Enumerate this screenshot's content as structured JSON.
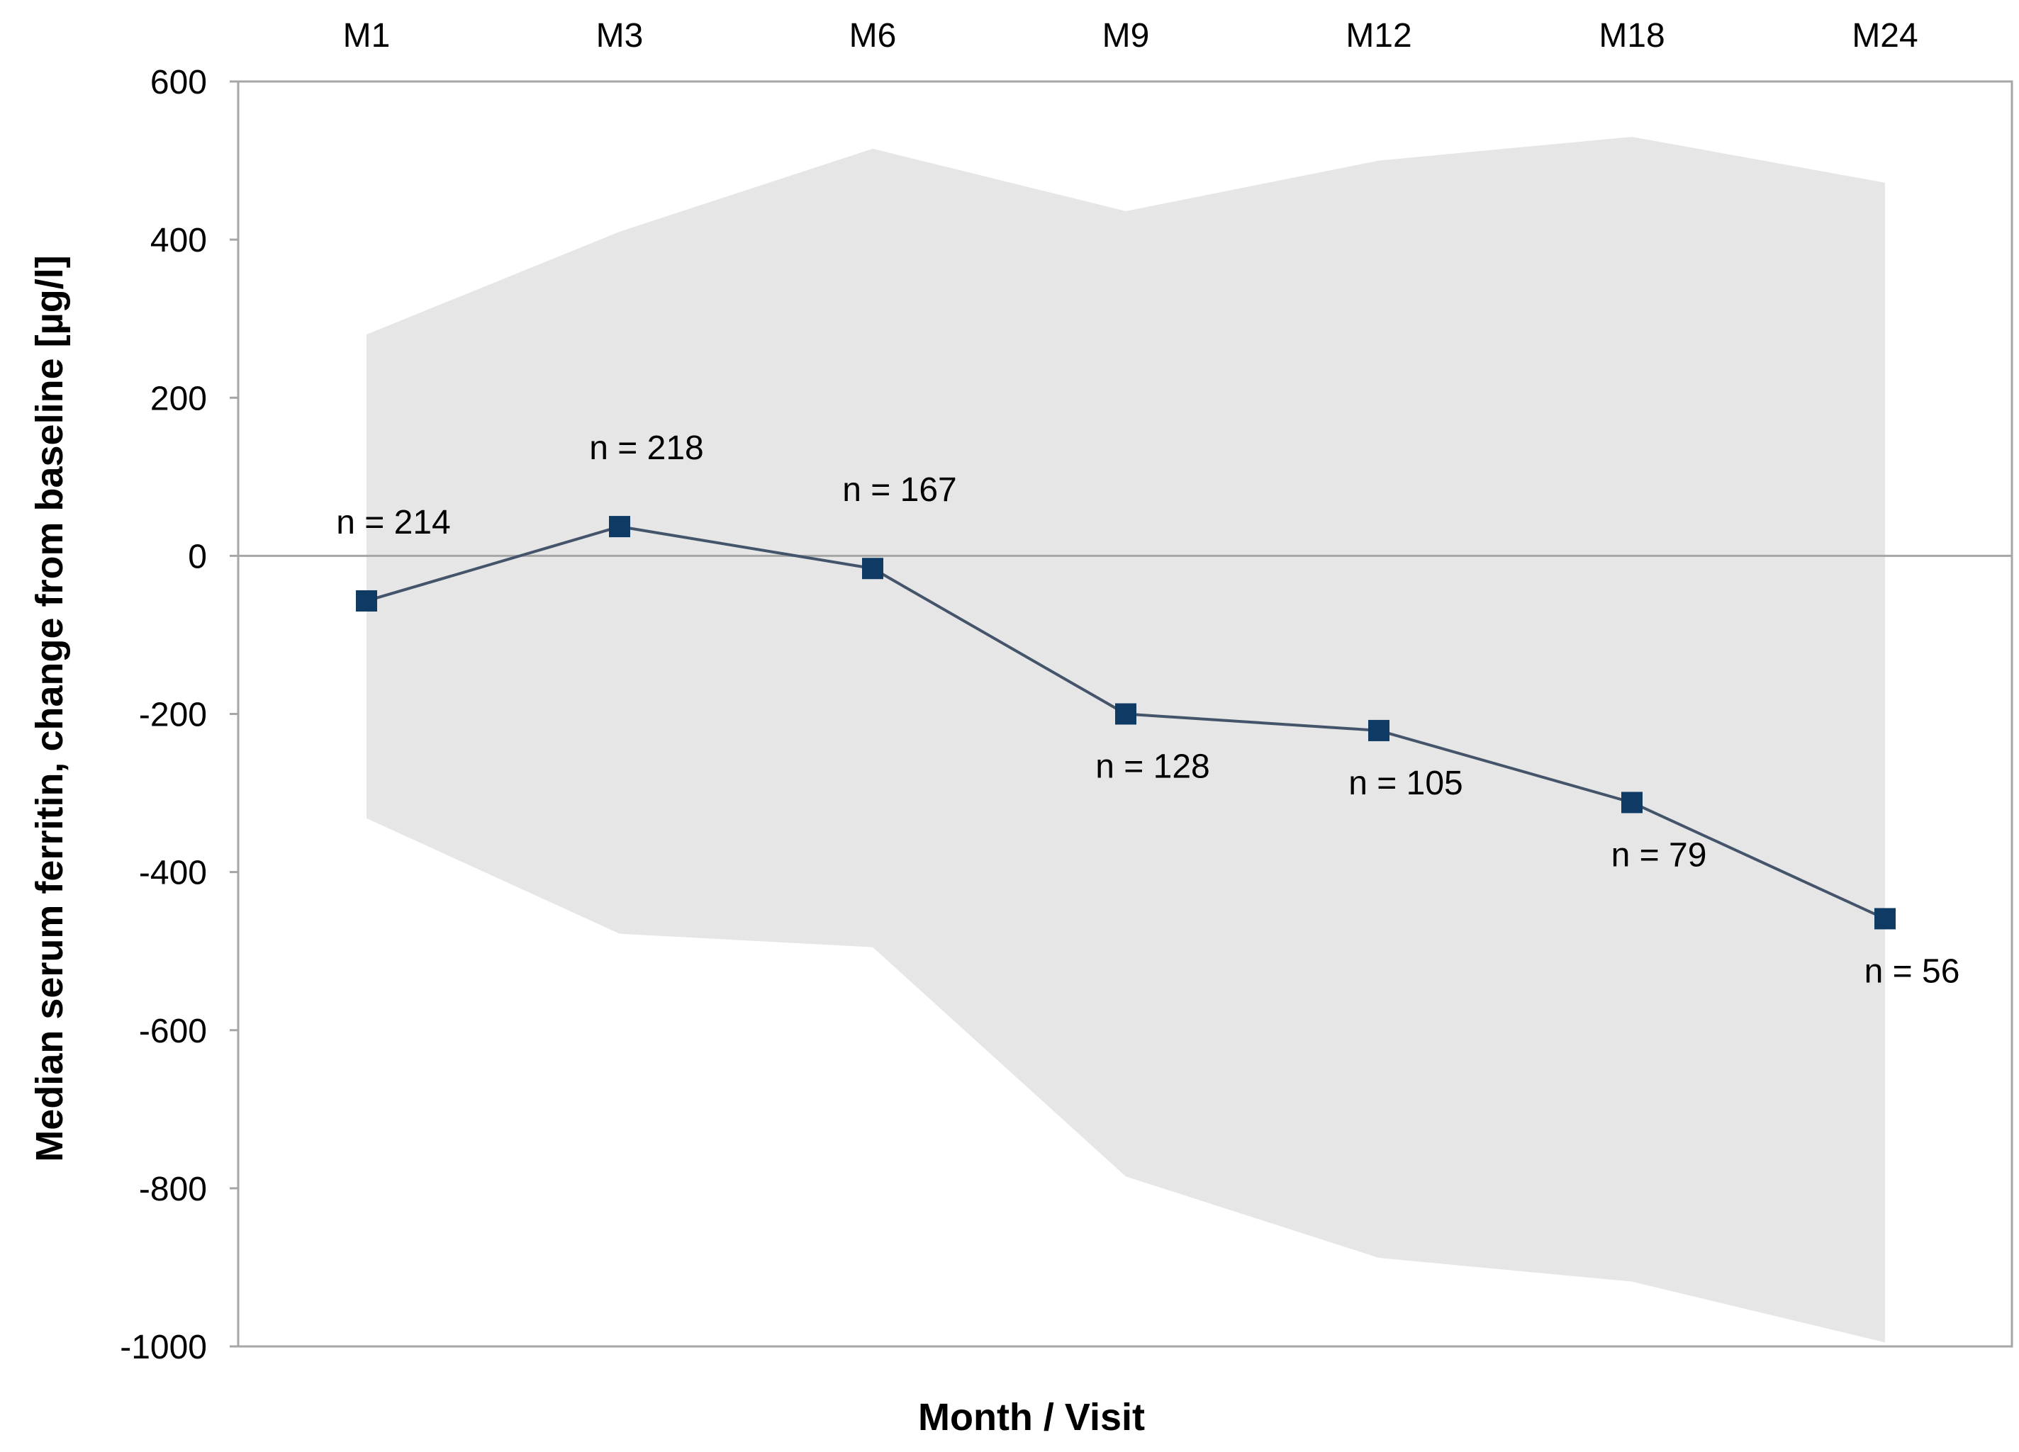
{
  "chart_data": {
    "type": "line",
    "xlabel": "Month / Visit",
    "ylabel": "Median serum ferritin, change from baseline [µg/l]",
    "ylim": [
      -1000,
      600
    ],
    "yticks": [
      600,
      400,
      200,
      0,
      -200,
      -400,
      -600,
      -800,
      -1000
    ],
    "categories": [
      "M1",
      "M3",
      "M6",
      "M9",
      "M12",
      "M18",
      "M24"
    ],
    "series": [
      {
        "values": [
          -57,
          37,
          -16,
          -200,
          -221,
          -312,
          -459
        ],
        "marker": "square",
        "color": "#0e3a64"
      }
    ],
    "range_band": {
      "upper": [
        280,
        410,
        515,
        436,
        500,
        530,
        472
      ],
      "lower": [
        -332,
        -478,
        -495,
        -785,
        -888,
        -918,
        -995
      ],
      "color": "#e6e6e6"
    },
    "annotations": [
      "n = 214",
      "n = 218",
      "n = 167",
      "n = 128",
      "n = 105",
      "n = 79",
      "n = 56"
    ],
    "annotation_positions": [
      "above",
      "above",
      "above",
      "below",
      "below",
      "below",
      "below"
    ],
    "x_tick_position": "top",
    "grid": false,
    "legend": "none",
    "zero_line_color": "#a6a6a6",
    "frame_color": "#a6a6a6"
  }
}
